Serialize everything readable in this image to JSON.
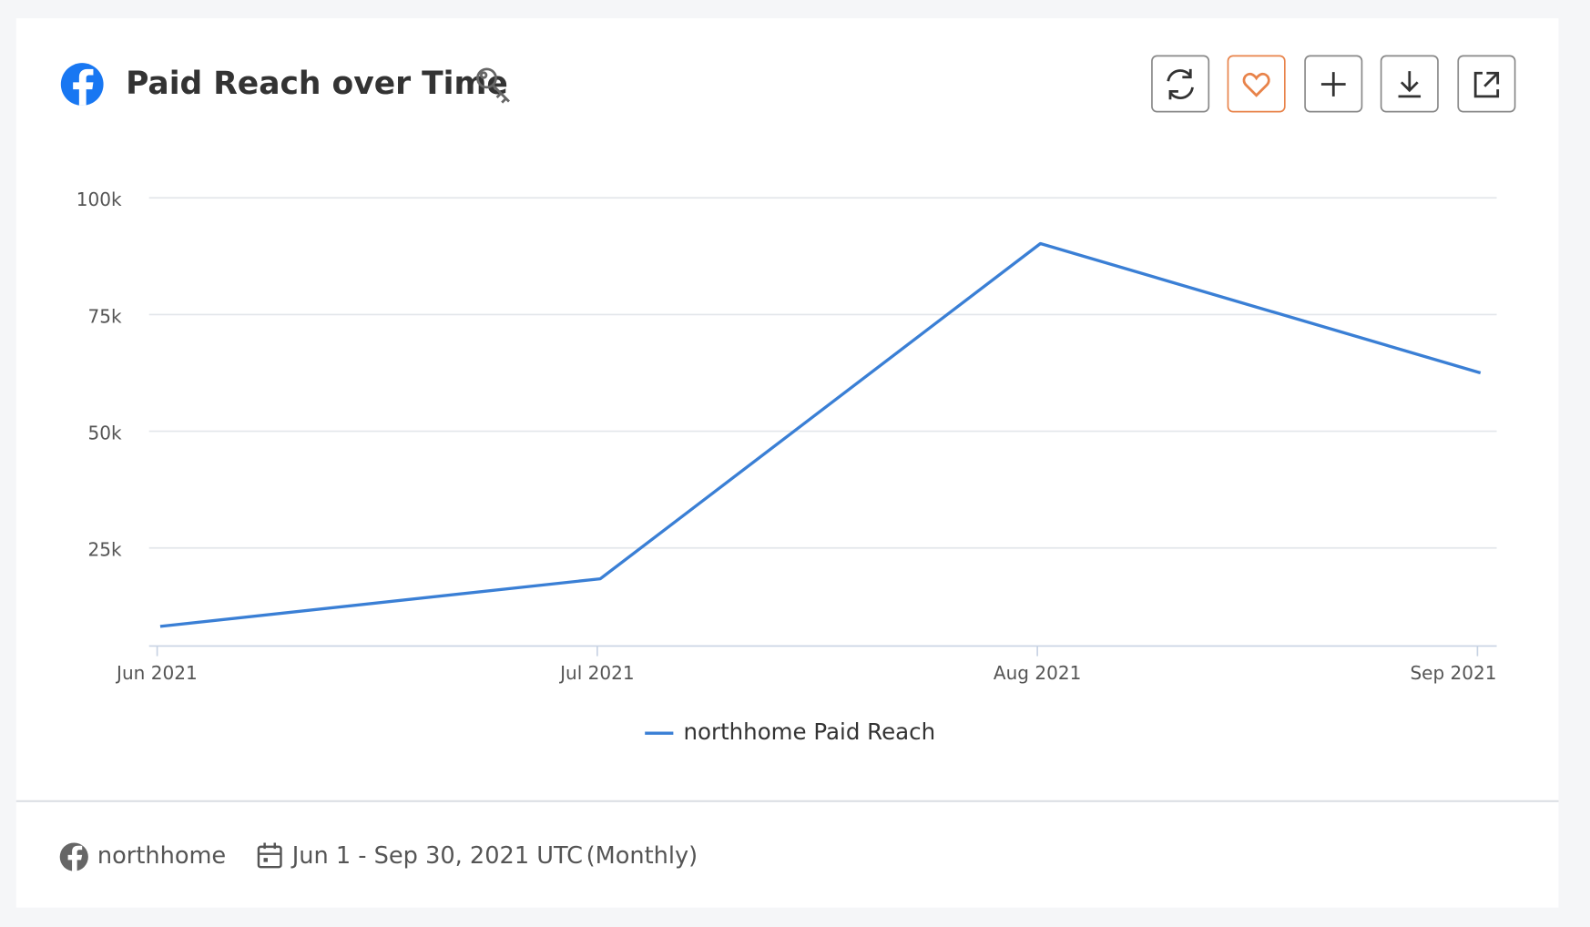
{
  "header": {
    "title": "Paid Reach over Time"
  },
  "chart_data": {
    "type": "line",
    "categories": [
      "Jun 2021",
      "Jul 2021",
      "Aug 2021",
      "Sep 2021"
    ],
    "series": [
      {
        "name": "northhome Paid Reach",
        "color": "#3a7fd5",
        "values": [
          8200,
          18400,
          90200,
          62500
        ]
      }
    ],
    "ylim": [
      4000,
      100000
    ],
    "yticks": [
      {
        "value": 25000,
        "label": "25k"
      },
      {
        "value": 50000,
        "label": "50k"
      },
      {
        "value": 75000,
        "label": "75k"
      },
      {
        "value": 100000,
        "label": "100k"
      }
    ],
    "grid": true
  },
  "footer": {
    "account": "northhome",
    "date_range": "Jun 1 - Sep 30, 2021 UTC",
    "interval": "(Monthly)"
  }
}
